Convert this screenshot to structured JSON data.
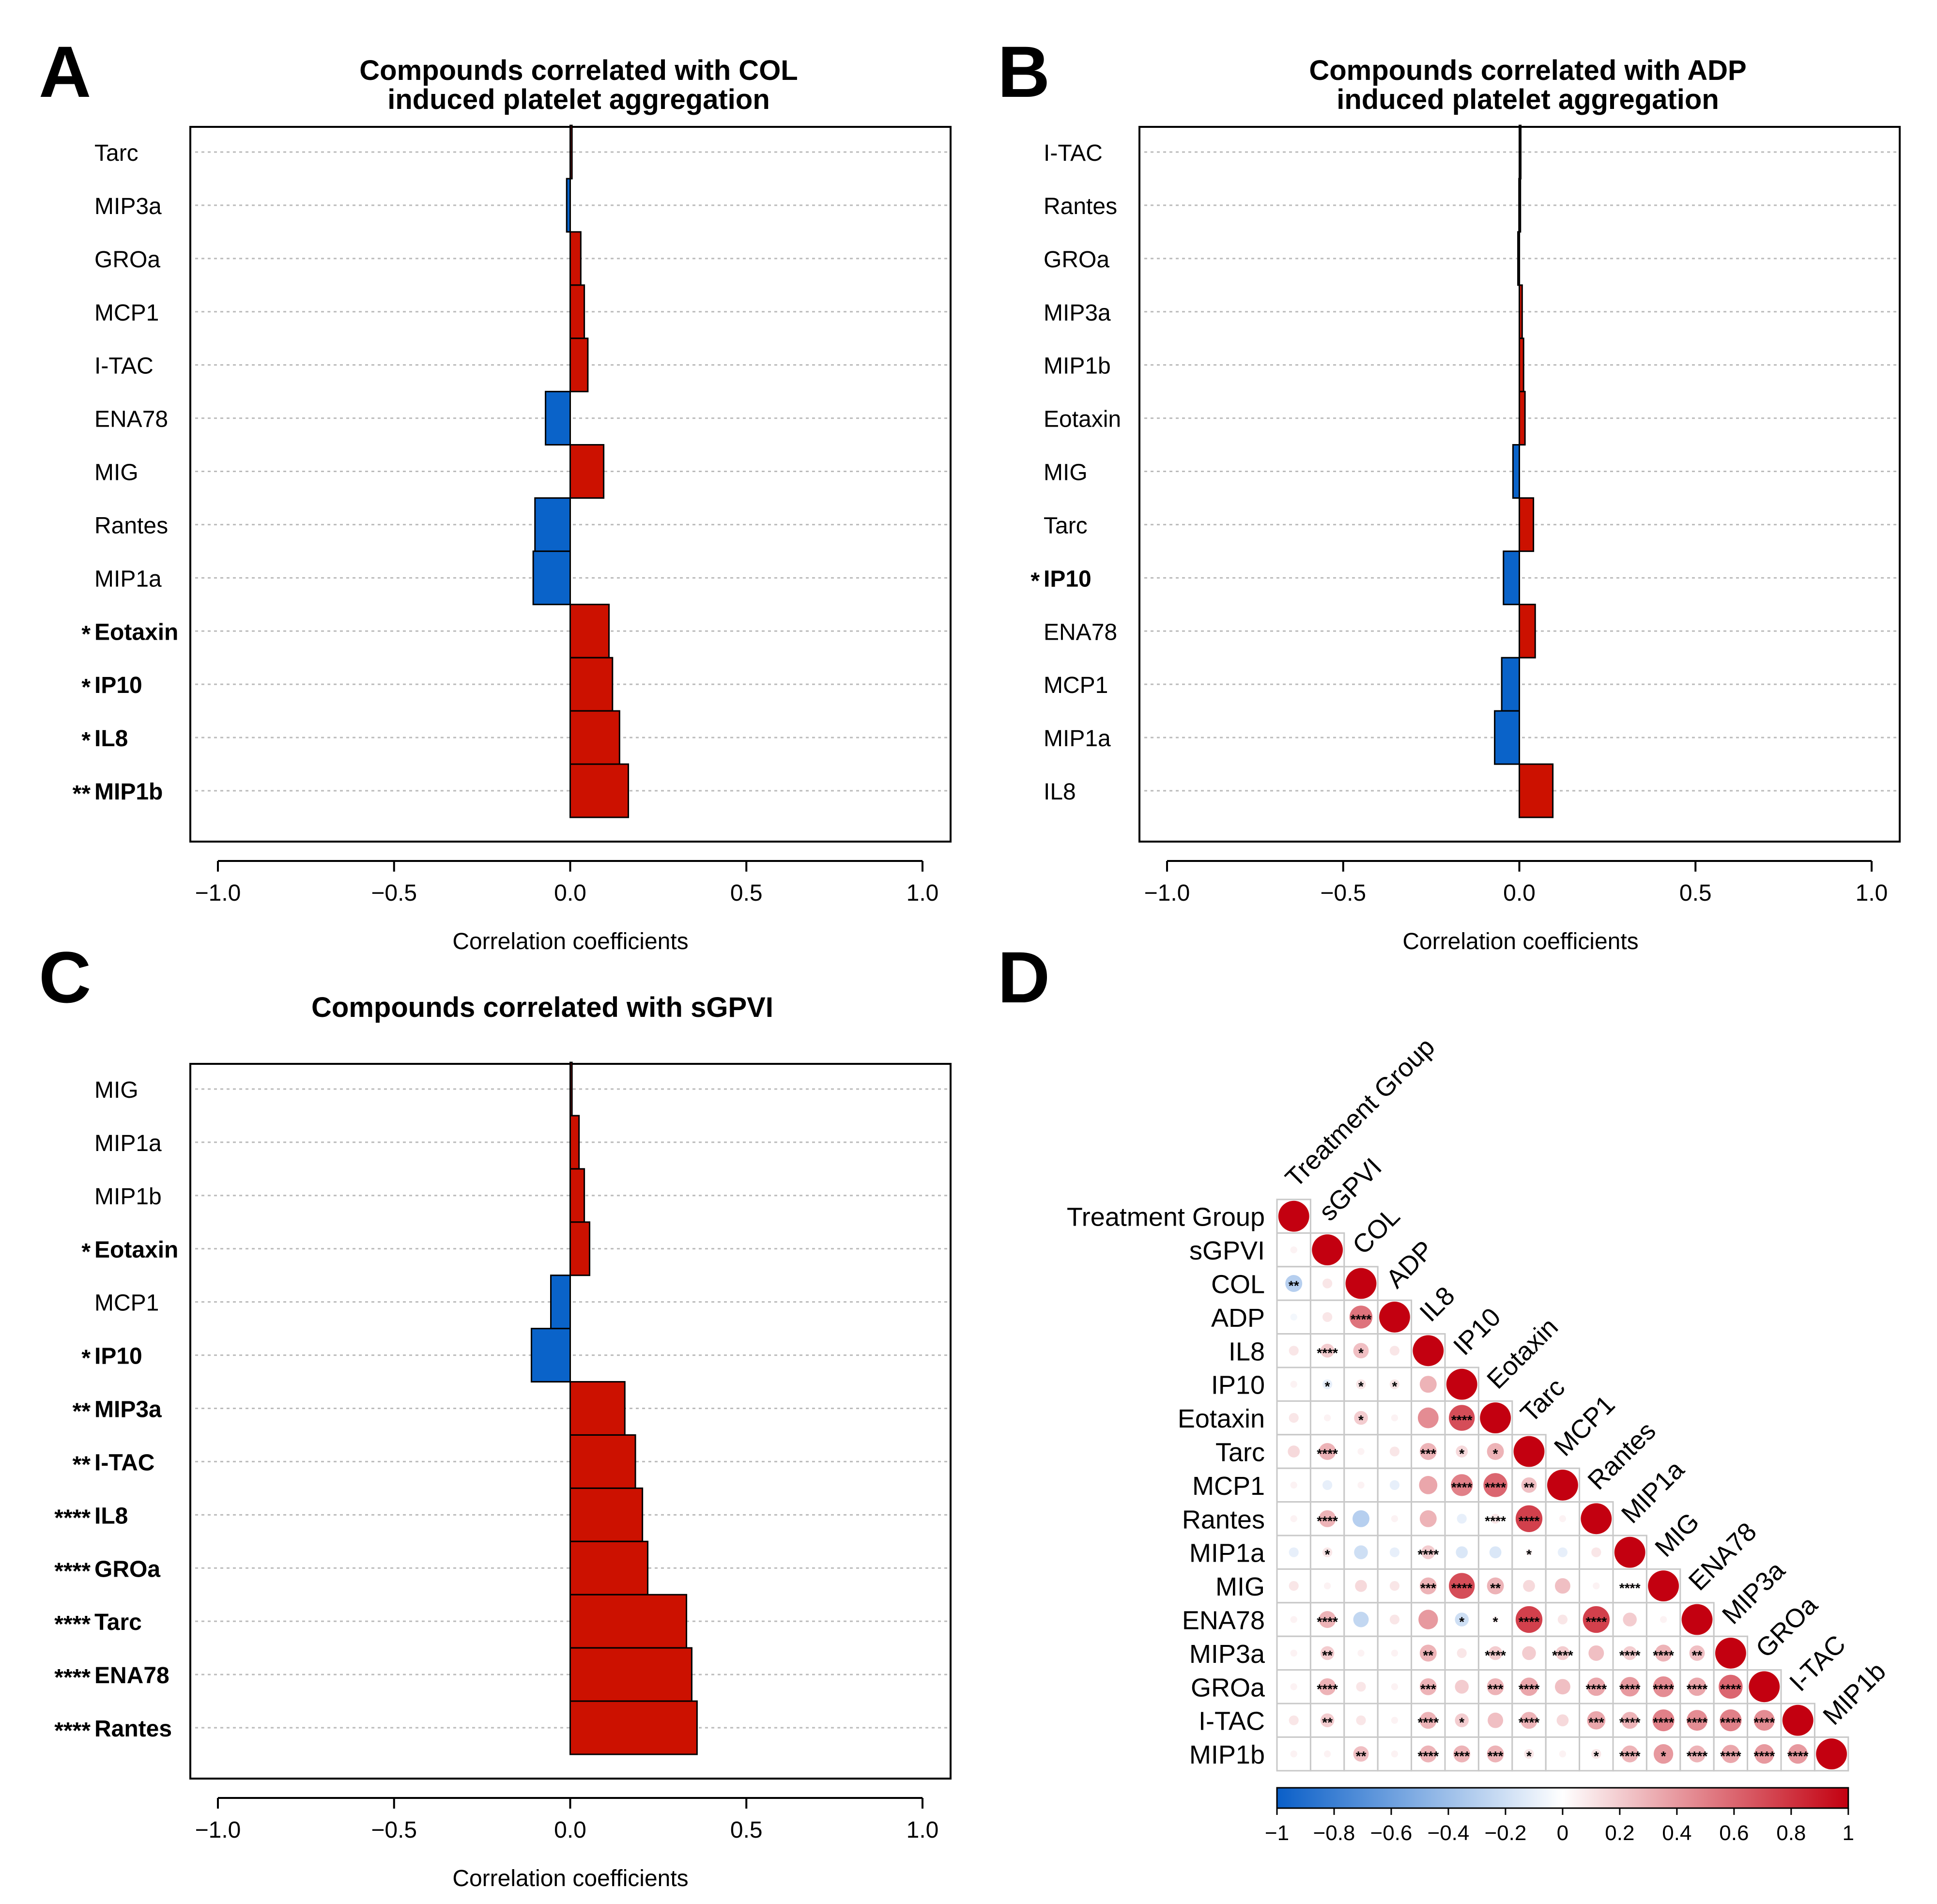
{
  "panels": {
    "A": {
      "letter": "A",
      "title_line1": "Compounds correlated with COL",
      "title_line2": "induced platelet aggregation",
      "xlabel": "Correlation coefficients"
    },
    "B": {
      "letter": "B",
      "title_line1": "Compounds correlated with ADP",
      "title_line2": "induced platelet aggregation",
      "xlabel": "Correlation coefficients"
    },
    "C": {
      "letter": "C",
      "title_line1": "Compounds correlated with sGPVI",
      "title_line2": "",
      "xlabel": "Correlation coefficients"
    },
    "D": {
      "letter": "D"
    }
  },
  "colors": {
    "positive": "#cc1100",
    "negative": "#0a63c9",
    "matrix_high": "#c30010",
    "matrix_low": "#0a5fc8",
    "grid": "#bbbbbb"
  },
  "chart_data": [
    {
      "panel": "A",
      "type": "bar",
      "orientation": "horizontal",
      "title": "Compounds correlated with COL induced platelet aggregation",
      "xlabel": "Correlation coefficients",
      "xlim": [
        -1.0,
        1.0
      ],
      "xticks": [
        "-1.0",
        "-0.5",
        "0.0",
        "0.5",
        "1.0"
      ],
      "categories": [
        {
          "label": "Tarc",
          "sig": "",
          "bold": false,
          "value": 0.005
        },
        {
          "label": "MIP3a",
          "sig": "",
          "bold": false,
          "value": -0.01
        },
        {
          "label": "GROa",
          "sig": "",
          "bold": false,
          "value": 0.03
        },
        {
          "label": "MCP1",
          "sig": "",
          "bold": false,
          "value": 0.04
        },
        {
          "label": "I-TAC",
          "sig": "",
          "bold": false,
          "value": 0.05
        },
        {
          "label": "ENA78",
          "sig": "",
          "bold": false,
          "value": -0.07
        },
        {
          "label": "MIG",
          "sig": "",
          "bold": false,
          "value": 0.095
        },
        {
          "label": "Rantes",
          "sig": "",
          "bold": false,
          "value": -0.1
        },
        {
          "label": "MIP1a",
          "sig": "",
          "bold": false,
          "value": -0.105
        },
        {
          "label": "Eotaxin",
          "sig": "*",
          "bold": true,
          "value": 0.11
        },
        {
          "label": "IP10",
          "sig": "*",
          "bold": true,
          "value": 0.12
        },
        {
          "label": "IL8",
          "sig": "*",
          "bold": true,
          "value": 0.14
        },
        {
          "label": "MIP1b",
          "sig": "**",
          "bold": true,
          "value": 0.165
        }
      ]
    },
    {
      "panel": "B",
      "type": "bar",
      "orientation": "horizontal",
      "title": "Compounds correlated with ADP induced platelet aggregation",
      "xlabel": "Correlation coefficients",
      "xlim": [
        -1.0,
        1.0
      ],
      "xticks": [
        "-1.0",
        "-0.5",
        "0.0",
        "0.5",
        "1.0"
      ],
      "categories": [
        {
          "label": "I-TAC",
          "sig": "",
          "bold": false,
          "value": 0.001
        },
        {
          "label": "Rantes",
          "sig": "",
          "bold": false,
          "value": -0.001
        },
        {
          "label": "GROa",
          "sig": "",
          "bold": false,
          "value": -0.004
        },
        {
          "label": "MIP3a",
          "sig": "",
          "bold": false,
          "value": 0.008
        },
        {
          "label": "MIP1b",
          "sig": "",
          "bold": false,
          "value": 0.012
        },
        {
          "label": "Eotaxin",
          "sig": "",
          "bold": false,
          "value": 0.016
        },
        {
          "label": "MIG",
          "sig": "",
          "bold": false,
          "value": -0.018
        },
        {
          "label": "Tarc",
          "sig": "",
          "bold": false,
          "value": 0.04
        },
        {
          "label": "IP10",
          "sig": "*",
          "bold": true,
          "value": -0.045
        },
        {
          "label": "ENA78",
          "sig": "",
          "bold": false,
          "value": 0.045
        },
        {
          "label": "MCP1",
          "sig": "",
          "bold": false,
          "value": -0.05
        },
        {
          "label": "MIP1a",
          "sig": "",
          "bold": false,
          "value": -0.07
        },
        {
          "label": "IL8",
          "sig": "",
          "bold": false,
          "value": 0.095
        }
      ]
    },
    {
      "panel": "C",
      "type": "bar",
      "orientation": "horizontal",
      "title": "Compounds correlated with sGPVI",
      "xlabel": "Correlation coefficients",
      "xlim": [
        -1.0,
        1.0
      ],
      "xticks": [
        "-1.0",
        "-0.5",
        "0.0",
        "0.5",
        "1.0"
      ],
      "categories": [
        {
          "label": "MIG",
          "sig": "",
          "bold": false,
          "value": 0.005
        },
        {
          "label": "MIP1a",
          "sig": "",
          "bold": false,
          "value": 0.025
        },
        {
          "label": "MIP1b",
          "sig": "",
          "bold": false,
          "value": 0.04
        },
        {
          "label": "Eotaxin",
          "sig": "*",
          "bold": true,
          "value": 0.055
        },
        {
          "label": "MCP1",
          "sig": "",
          "bold": false,
          "value": -0.055
        },
        {
          "label": "IP10",
          "sig": "*",
          "bold": true,
          "value": -0.11
        },
        {
          "label": "MIP3a",
          "sig": "**",
          "bold": true,
          "value": 0.155
        },
        {
          "label": "I-TAC",
          "sig": "**",
          "bold": true,
          "value": 0.185
        },
        {
          "label": "IL8",
          "sig": "****",
          "bold": true,
          "value": 0.205
        },
        {
          "label": "GROa",
          "sig": "****",
          "bold": true,
          "value": 0.22
        },
        {
          "label": "Tarc",
          "sig": "****",
          "bold": true,
          "value": 0.33
        },
        {
          "label": "ENA78",
          "sig": "****",
          "bold": true,
          "value": 0.345
        },
        {
          "label": "Rantes",
          "sig": "****",
          "bold": true,
          "value": 0.36
        }
      ]
    },
    {
      "panel": "D",
      "type": "heatmap",
      "labels": [
        "Treatment Group",
        "sGPVI",
        "COL",
        "ADP",
        "IL8",
        "IP10",
        "Eotaxin",
        "Tarc",
        "MCP1",
        "Rantes",
        "MIP1a",
        "MIG",
        "ENA78",
        "MIP3a",
        "GROa",
        "I-TAC",
        "MIP1b"
      ],
      "colorbar_ticks": [
        "-1",
        "-0.8",
        "-0.6",
        "-0.4",
        "-0.2",
        "0",
        "0.2",
        "0.4",
        "0.6",
        "0.8",
        "1"
      ],
      "lower_triangle": [
        [],
        [
          0.05
        ],
        [
          -0.3,
          0.1
        ],
        [
          -0.05,
          0.1,
          0.55
        ],
        [
          0.1,
          0.2,
          0.25,
          0.1
        ],
        [
          0.05,
          -0.1,
          0.1,
          0.1,
          0.3
        ],
        [
          0.1,
          0.05,
          0.2,
          0.05,
          0.45,
          0.7
        ],
        [
          0.15,
          0.3,
          0.05,
          0.1,
          0.3,
          0.15,
          0.3
        ],
        [
          0.05,
          -0.1,
          0.05,
          -0.1,
          0.35,
          0.5,
          0.6,
          0.25
        ],
        [
          0.05,
          0.3,
          -0.3,
          0.05,
          0.3,
          -0.1,
          0.1,
          0.75,
          0.05
        ],
        [
          -0.1,
          0.1,
          -0.2,
          -0.1,
          0.2,
          -0.15,
          -0.15,
          0.05,
          -0.1,
          0.1
        ],
        [
          0.1,
          0.05,
          0.15,
          0.1,
          0.3,
          0.7,
          0.3,
          0.15,
          0.25,
          0.05,
          0.05
        ],
        [
          0.05,
          0.3,
          -0.25,
          0.1,
          0.4,
          -0.2,
          0.05,
          0.75,
          0.1,
          0.75,
          0.2,
          0.05
        ],
        [
          0.05,
          0.2,
          0.05,
          0.05,
          0.3,
          0.1,
          0.2,
          0.2,
          0.2,
          0.25,
          0.2,
          0.3,
          0.25
        ],
        [
          0.05,
          0.3,
          0.1,
          0.05,
          0.3,
          0.2,
          0.3,
          0.35,
          0.25,
          0.35,
          0.4,
          0.45,
          0.35,
          0.6
        ],
        [
          0.1,
          0.2,
          0.1,
          0.05,
          0.3,
          0.2,
          0.25,
          0.3,
          0.15,
          0.35,
          0.3,
          0.5,
          0.45,
          0.5,
          0.45
        ],
        [
          0.05,
          0.05,
          0.25,
          0.05,
          0.3,
          0.3,
          0.3,
          0.1,
          0.05,
          0.1,
          0.3,
          0.4,
          0.3,
          0.35,
          0.4,
          0.4
        ]
      ],
      "significance": [
        [],
        [
          ""
        ],
        [
          "**",
          ""
        ],
        [
          "",
          "",
          "****"
        ],
        [
          "",
          "****",
          "*",
          ""
        ],
        [
          "",
          "*",
          "*",
          "*",
          ""
        ],
        [
          "",
          "",
          "*",
          "",
          "",
          "****"
        ],
        [
          "",
          "****",
          "",
          "",
          "***",
          "*",
          "*"
        ],
        [
          "",
          "",
          "",
          "",
          "",
          "****",
          "****",
          "**"
        ],
        [
          "",
          "****",
          "",
          "",
          "",
          "",
          "****",
          "****",
          ""
        ],
        [
          "",
          "*",
          "",
          "",
          "****",
          "",
          "",
          "*",
          "",
          ""
        ],
        [
          "",
          "",
          "",
          "",
          "***",
          "****",
          "**",
          "",
          "",
          "",
          "****"
        ],
        [
          "",
          "****",
          "",
          "",
          "",
          "*",
          "*",
          "****",
          "",
          "****",
          "",
          ""
        ],
        [
          "",
          "**",
          "",
          "",
          "**",
          "",
          "****",
          "",
          "****",
          "",
          "****",
          "****",
          "**"
        ],
        [
          "",
          "****",
          "",
          "",
          "***",
          "",
          "***",
          "****",
          "",
          "****",
          "****",
          "****",
          "****",
          "****"
        ],
        [
          "",
          "**",
          "",
          "",
          "****",
          "*",
          "",
          "****",
          "",
          "***",
          "****",
          "****",
          "****",
          "****",
          "****"
        ],
        [
          "",
          "",
          "**",
          "",
          "****",
          "***",
          "***",
          "*",
          "",
          "*",
          "****",
          "*",
          "****",
          "****",
          "****",
          "****"
        ]
      ]
    }
  ]
}
